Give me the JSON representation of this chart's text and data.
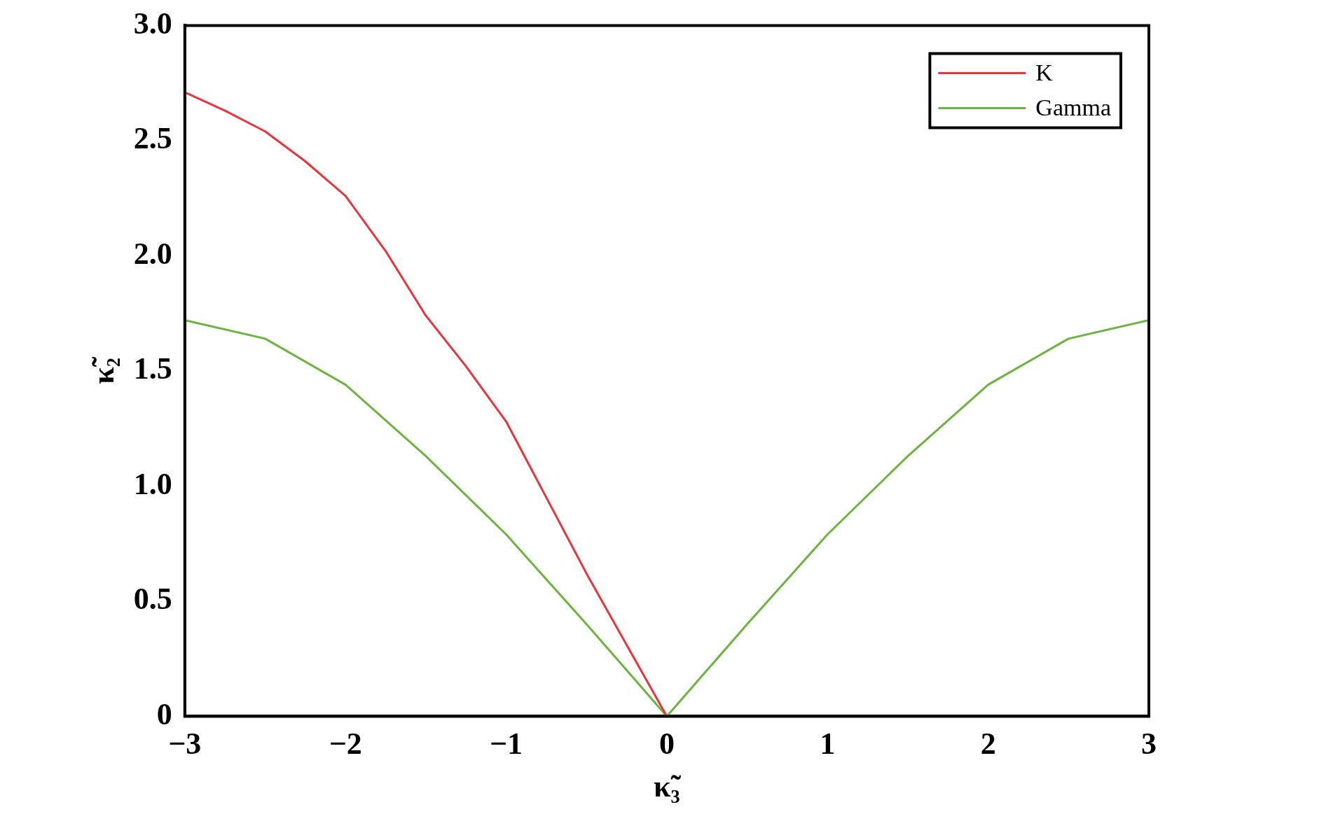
{
  "chart_data": {
    "type": "line",
    "xlabel": "κ̃₃",
    "ylabel": "κ̃₂",
    "xlim": [
      -3,
      3
    ],
    "ylim": [
      0,
      3
    ],
    "xticks": [
      {
        "value": -3,
        "label": "−3"
      },
      {
        "value": -2,
        "label": "−2"
      },
      {
        "value": -1,
        "label": "−1"
      },
      0,
      1,
      2,
      3
    ],
    "yticks": [
      0,
      0.5,
      {
        "value": 1,
        "label": "1.0"
      },
      1.5,
      {
        "value": 2,
        "label": "2.0"
      },
      2.5,
      {
        "value": 3,
        "label": "3.0"
      }
    ],
    "legend": "top right",
    "marker": "none",
    "grid": false,
    "series": [
      {
        "name": "K",
        "color": "#e8343a",
        "x": [
          -3,
          -2.75,
          -2.5,
          -2.25,
          -2,
          -1.75,
          -1.5,
          -1.25,
          -1,
          -0.75,
          -0.5,
          -0.25,
          0
        ],
        "values": [
          2.71,
          2.63,
          2.54,
          2.41,
          2.26,
          2.02,
          1.74,
          1.52,
          1.28,
          0.95,
          0.62,
          0.31,
          0
        ]
      },
      {
        "name": "Gamma",
        "color": "#6db33f",
        "x": [
          -3,
          -2.5,
          -2,
          -1.5,
          -1,
          -0.5,
          -0.25,
          0,
          0.25,
          0.5,
          1,
          1.5,
          2,
          2.5,
          3
        ],
        "values": [
          1.72,
          1.64,
          1.44,
          1.13,
          0.79,
          0.4,
          0.2,
          0,
          0.2,
          0.4,
          0.79,
          1.13,
          1.44,
          1.64,
          1.72
        ]
      }
    ]
  }
}
